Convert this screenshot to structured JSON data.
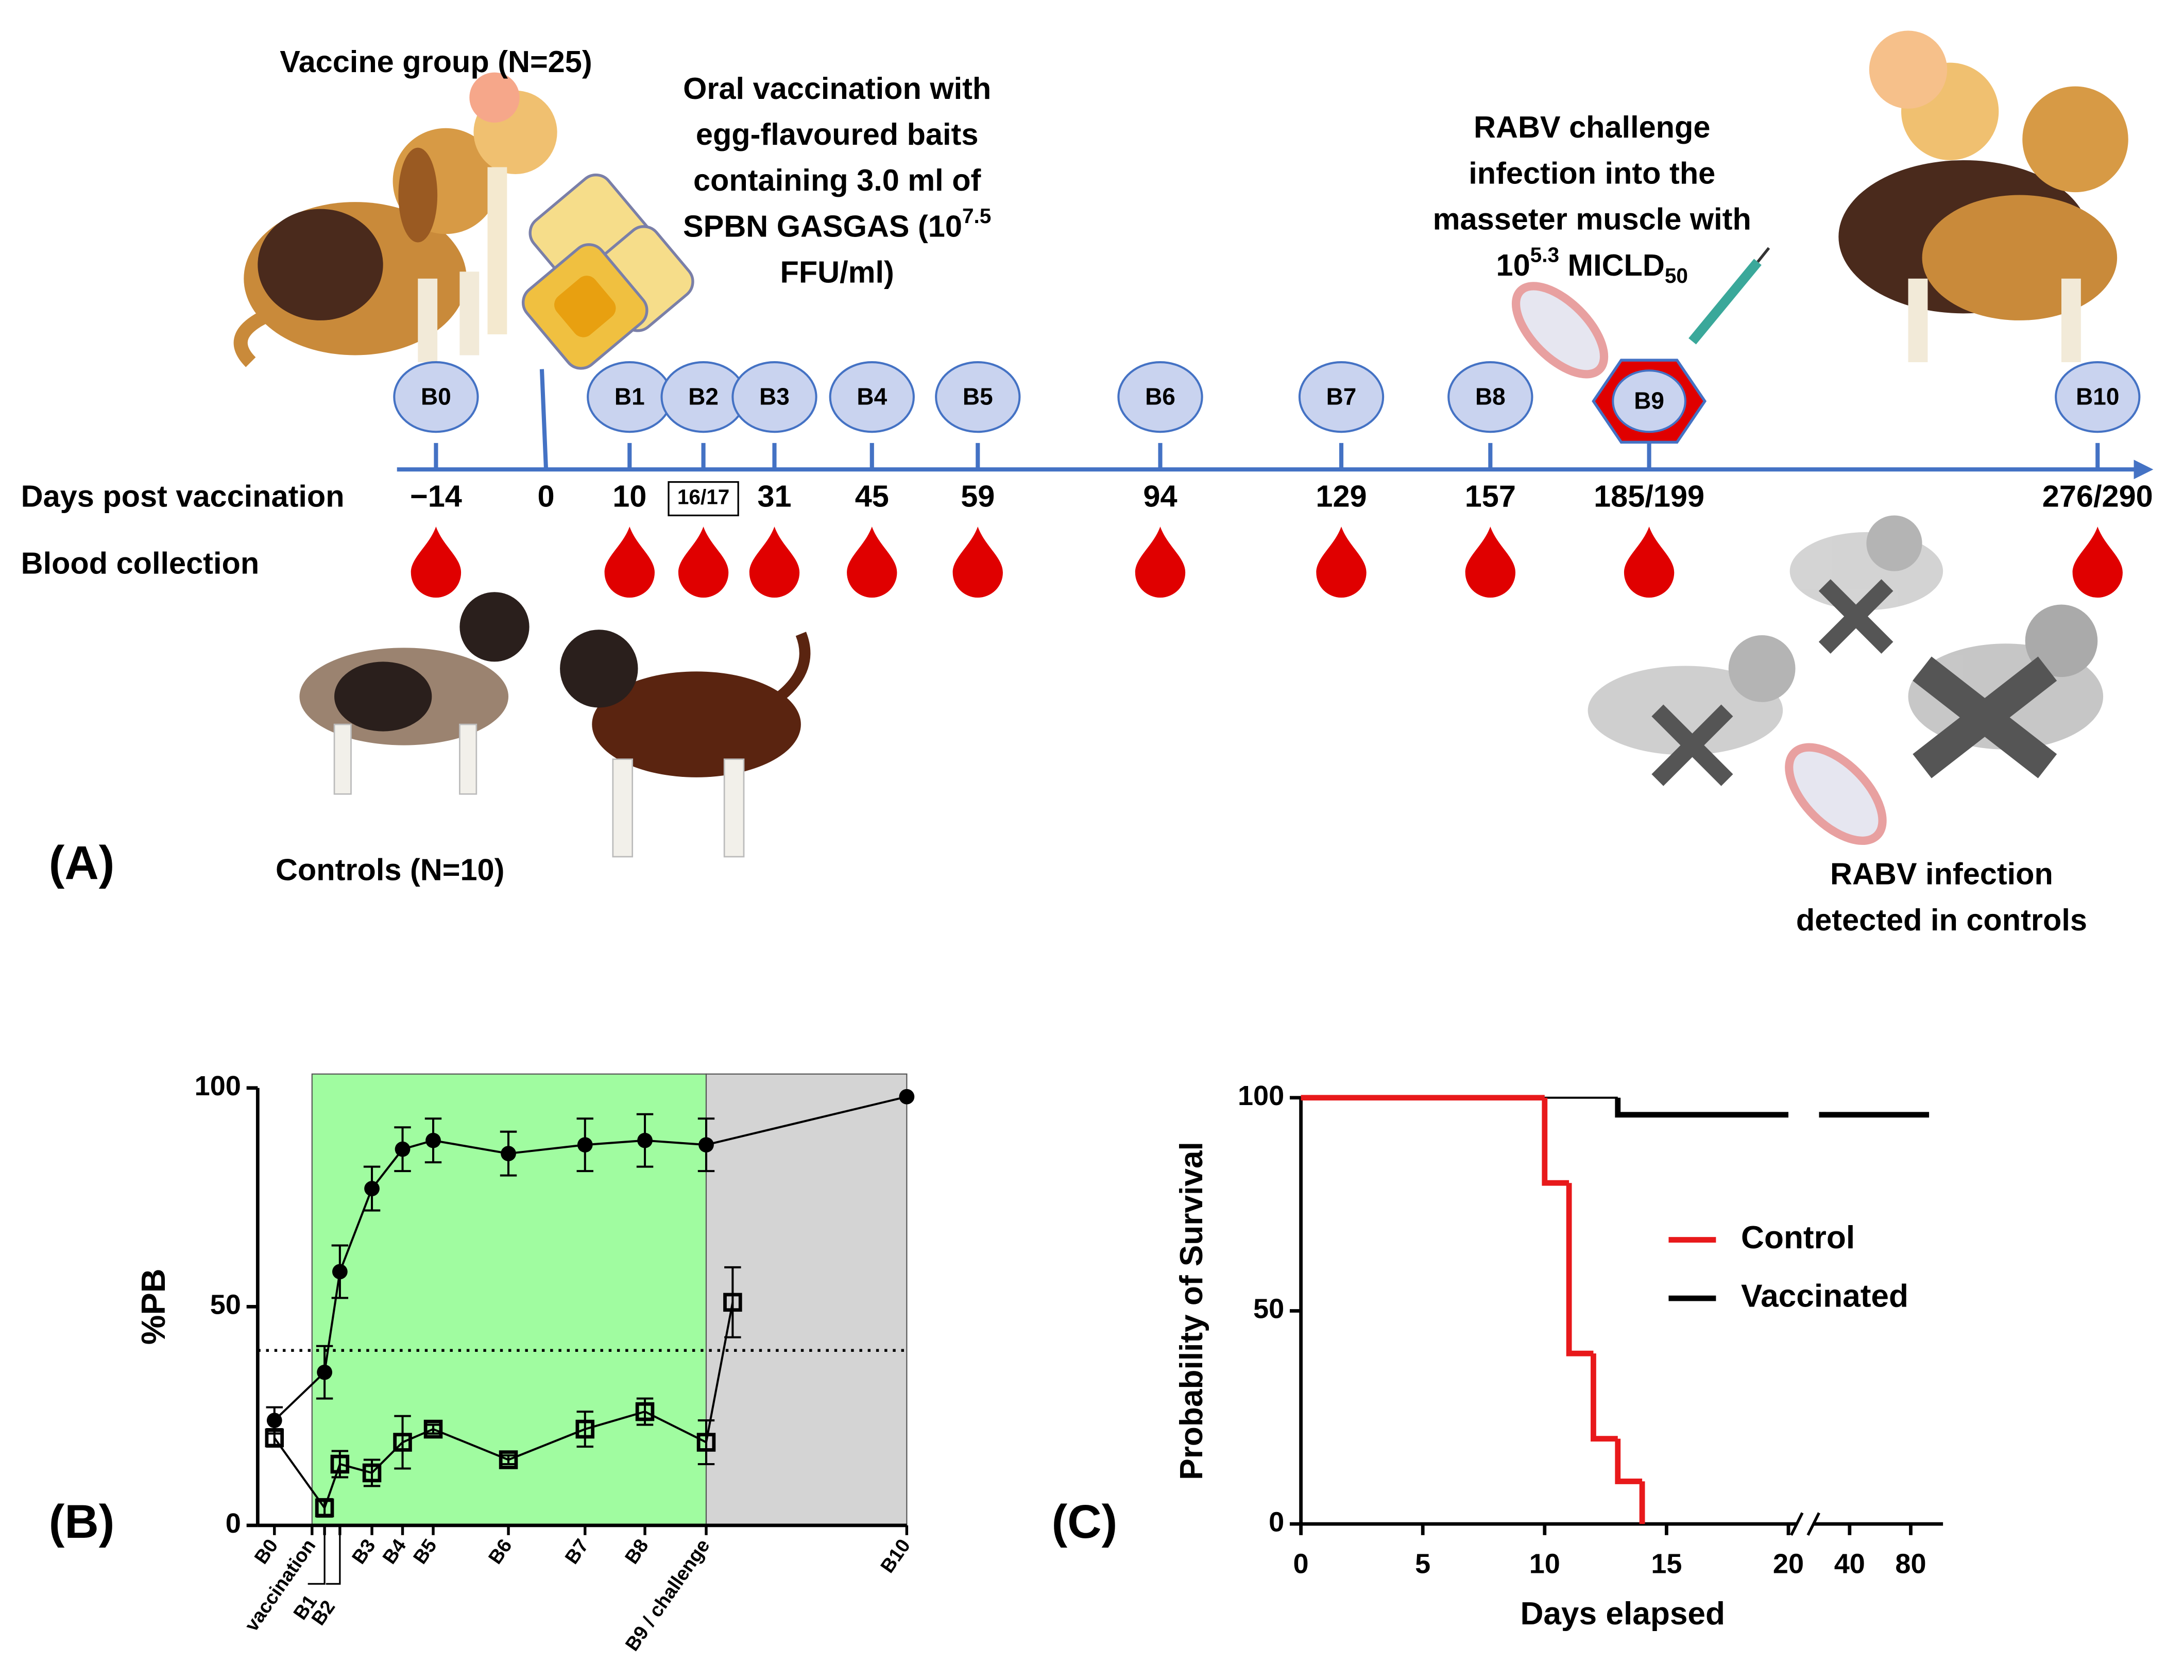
{
  "panel_labels": [
    "(A)",
    "(B)",
    "(C)"
  ],
  "diagram": {
    "vaccine_group": "Vaccine group (N=25)",
    "controls": "Controls (N=10)",
    "vaccination": {
      "lines": [
        "Oral vaccination with",
        "egg-flavoured baits",
        "containing 3.0 ml of",
        "SPBN GASGAS (10"
      ],
      "exponent": "7.5",
      "last_line": "FFU/ml)"
    },
    "challenge": {
      "lines": [
        "RABV challenge",
        "infection into the",
        "masseter muscle with"
      ],
      "base": "10",
      "exponent": "5.3",
      "unit": " MICLD",
      "subscript": "50"
    },
    "infection": [
      "RABV infection",
      "detected in controls"
    ],
    "row_labels": [
      "Days post vaccination",
      "Blood collection"
    ],
    "timeline": [
      {
        "label": "B0",
        "day": "−14"
      },
      {
        "day": "0"
      },
      {
        "label": "B1",
        "day": "10"
      },
      {
        "label": "B2",
        "day": "16/17"
      },
      {
        "label": "B3",
        "day": "31"
      },
      {
        "label": "B4",
        "day": "45"
      },
      {
        "label": "B5",
        "day": "59"
      },
      {
        "label": "B6",
        "day": "94"
      },
      {
        "label": "B7",
        "day": "129"
      },
      {
        "label": "B8",
        "day": "157"
      },
      {
        "label": "B9",
        "day": "185/199"
      },
      {
        "label": "B10",
        "day": "276/290"
      }
    ]
  },
  "chart_data": [
    {
      "type": "line",
      "ylabel": "%PB",
      "ylim": [
        0,
        100
      ],
      "yticks": [
        0,
        50,
        100
      ],
      "threshold": 40,
      "shade_colors": [
        "#a0fca0",
        "#d4d4d4"
      ],
      "categories": [
        "B0",
        "vaccination",
        "B1",
        "B2",
        "B3",
        "B4",
        "B5",
        "B6",
        "B7",
        "B8",
        "B9 / challenge",
        null,
        "B10"
      ],
      "series": [
        {
          "marker": "circle",
          "color": "#000000",
          "values": [
            24,
            null,
            35,
            58,
            77,
            86,
            88,
            85,
            87,
            88,
            87,
            null,
            98
          ],
          "errors": [
            3,
            null,
            6,
            6,
            5,
            5,
            5,
            5,
            6,
            6,
            6,
            null,
            null
          ]
        },
        {
          "marker": "square",
          "color": "#000000",
          "values": [
            20,
            null,
            4,
            14,
            12,
            19,
            22,
            15,
            22,
            26,
            19,
            51,
            null
          ],
          "errors": [
            2,
            null,
            2,
            3,
            3,
            6,
            1,
            1,
            4,
            3,
            5,
            8,
            null
          ]
        }
      ]
    },
    {
      "type": "step",
      "xlabel": "Days elapsed",
      "ylabel": "Probability of Survival",
      "xlim": [
        0,
        20
      ],
      "xticks": [
        0,
        5,
        10,
        15,
        20
      ],
      "x2lim": [
        20,
        92
      ],
      "x2ticks": [
        40,
        80
      ],
      "ylim": [
        0,
        100
      ],
      "yticks": [
        0,
        50,
        100
      ],
      "series": [
        {
          "name": "Control",
          "color": "#e8191b",
          "x": [
            0,
            10,
            11,
            12,
            13,
            14
          ],
          "values": [
            100,
            80,
            40,
            20,
            10,
            0
          ]
        },
        {
          "name": "Vaccinated",
          "color": "#000000",
          "x": [
            0,
            13,
            92
          ],
          "values": [
            100,
            96,
            96
          ]
        }
      ]
    }
  ]
}
